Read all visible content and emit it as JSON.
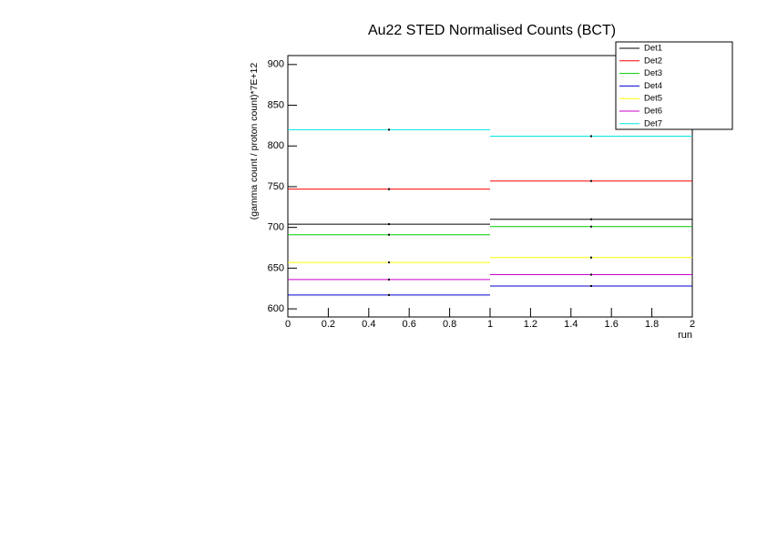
{
  "chart_data": {
    "type": "histogram",
    "title": "Au22 STED Normalised Counts (BCT)",
    "x_label": "run",
    "y_label": "(gamma count / proton count)*7E+12",
    "bins": [
      0,
      1,
      2
    ],
    "series": [
      {
        "name": "Det1",
        "color": "#000000",
        "values": [
          704,
          710
        ]
      },
      {
        "name": "Det2",
        "color": "#ff0000",
        "values": [
          747,
          757
        ]
      },
      {
        "name": "Det3",
        "color": "#00cc00",
        "values": [
          691,
          701
        ]
      },
      {
        "name": "Det4",
        "color": "#0000cc",
        "values": [
          617,
          628
        ]
      },
      {
        "name": "Det5",
        "color": "#ffff00",
        "values": [
          657,
          663
        ]
      },
      {
        "name": "Det6",
        "color": "#cc00cc",
        "values": [
          636,
          642
        ]
      },
      {
        "name": "Det7",
        "color": "#00e5e5",
        "values": [
          820,
          812
        ]
      }
    ],
    "xlim": [
      0,
      2
    ],
    "xticks": [
      0,
      0.2,
      0.4,
      0.6,
      0.8,
      1,
      1.2,
      1.4,
      1.6,
      1.8,
      2
    ],
    "ylim": [
      590,
      911
    ],
    "yticks": [
      600,
      650,
      700,
      750,
      800,
      850,
      900
    ],
    "legend": "top-right"
  }
}
